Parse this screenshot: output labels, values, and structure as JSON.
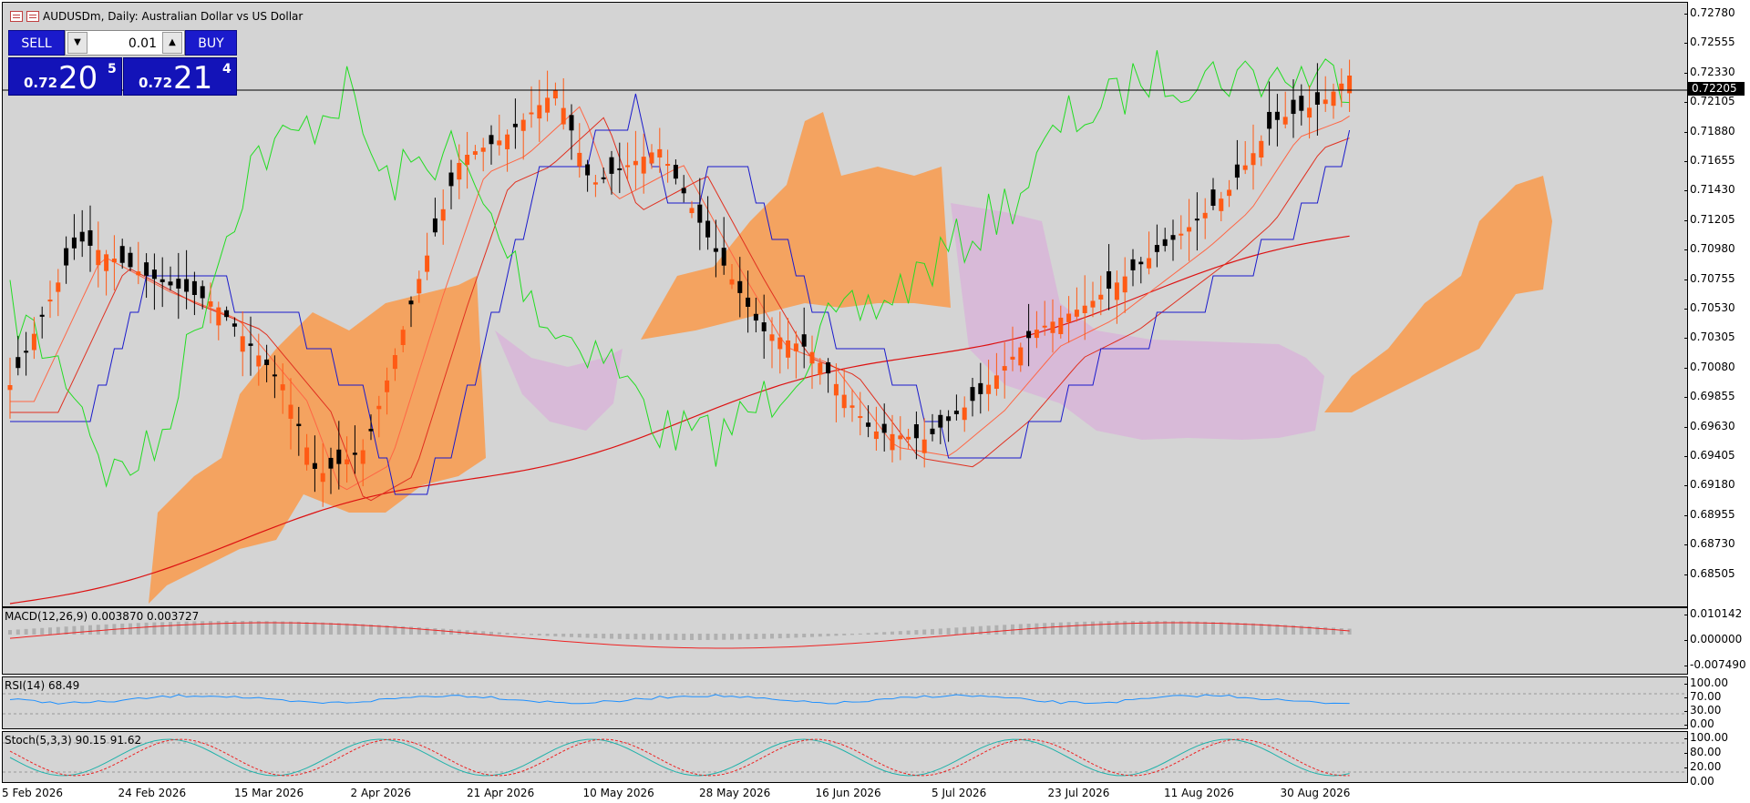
{
  "window": {
    "title": "AUDUSDm, Daily:  Australian Dollar vs US Dollar",
    "icons": [
      "chart-window-icon",
      "chart-restore-icon"
    ]
  },
  "trade_panel": {
    "sell_label": "SELL",
    "buy_label": "BUY",
    "lot_value": "0.01",
    "sell_price_small": "0.72",
    "sell_price_big": "20",
    "sell_price_sup": "5",
    "buy_price_small": "0.72",
    "buy_price_big": "21",
    "buy_price_sup": "4"
  },
  "price_axis": {
    "ticks": [
      "0.72780",
      "0.72555",
      "0.72330",
      "0.72105",
      "0.71880",
      "0.71655",
      "0.71430",
      "0.71205",
      "0.70980",
      "0.70755",
      "0.70530",
      "0.70305",
      "0.70080",
      "0.69855",
      "0.69630",
      "0.69405",
      "0.69180",
      "0.68955",
      "0.68730",
      "0.68505"
    ],
    "current": "0.72205"
  },
  "macd": {
    "label": "MACD(12,26,9) 0.003870 0.003727",
    "ticks": [
      "0.010142",
      "0.000000",
      "-0.007490"
    ]
  },
  "rsi": {
    "label": "RSI(14) 68.49",
    "ticks": [
      "100.00",
      "70.00",
      "30.00",
      "0.00"
    ]
  },
  "stoch": {
    "label": "Stoch(5,3,3) 90.15 91.62",
    "ticks": [
      "100.00",
      "80.00",
      "20.00",
      "0.00"
    ]
  },
  "time_axis": {
    "ticks": [
      "5 Feb 2026",
      "24 Feb 2026",
      "15 Mar 2026",
      "2 Apr 2026",
      "21 Apr 2026",
      "10 May 2026",
      "28 May 2026",
      "16 Jun 2026",
      "5 Jul 2026",
      "23 Jul 2026",
      "11 Aug 2026",
      "30 Aug 2026"
    ]
  },
  "colors": {
    "background": "#d4d4d4",
    "bull_candle": "#ff5a14",
    "bear_candle": "#000000",
    "cloud_bull": "#f5a05a",
    "cloud_bear": "#d8b8d8",
    "chikou": "#22dd22",
    "kijun": "#1a1acc",
    "ma_slow": "#dd1111",
    "signal_line": "#ee2222",
    "rsi_line": "#1e90ff",
    "stoch_main": "#20b2aa",
    "stoch_signal": "#ee2222"
  }
}
